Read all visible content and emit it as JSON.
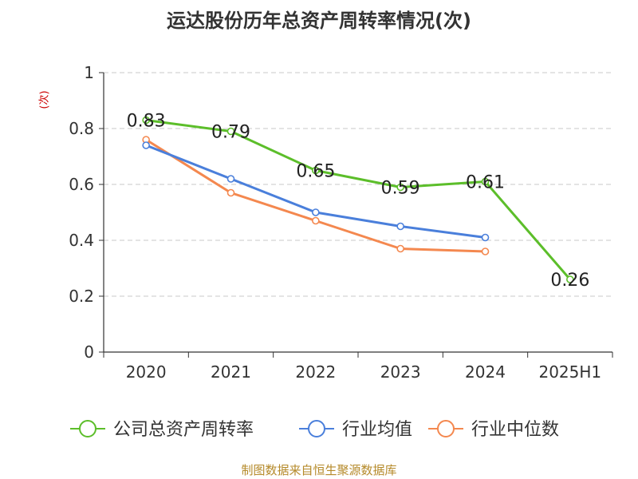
{
  "chart_data": {
    "type": "line",
    "title": "运达股份历年总资产周转率情况(次)",
    "ylabel": "(次)",
    "ylim": [
      0,
      1
    ],
    "yticks": [
      0,
      0.2,
      0.4,
      0.6,
      0.8,
      1
    ],
    "ytick_labels": [
      "0",
      "0.2",
      "0.4",
      "0.6",
      "0.8",
      "1"
    ],
    "grid": true,
    "legend_position": "bottom",
    "categories": [
      "2020",
      "2021",
      "2022",
      "2023",
      "2024",
      "2025H1"
    ],
    "series": [
      {
        "name": "公司总资产周转率",
        "color": "#5cbe2a",
        "values": [
          0.83,
          0.79,
          0.65,
          0.59,
          0.61,
          0.26
        ],
        "labels": [
          "0.83",
          "0.79",
          "0.65",
          "0.59",
          "0.61",
          "0.26"
        ]
      },
      {
        "name": "行业均值",
        "color": "#4a7fdb",
        "values": [
          0.74,
          0.62,
          0.5,
          0.45,
          0.41,
          null
        ]
      },
      {
        "name": "行业中位数",
        "color": "#f4884f",
        "values": [
          0.76,
          0.57,
          0.47,
          0.37,
          0.36,
          null
        ]
      }
    ]
  },
  "source": "制图数据来自恒生聚源数据库"
}
